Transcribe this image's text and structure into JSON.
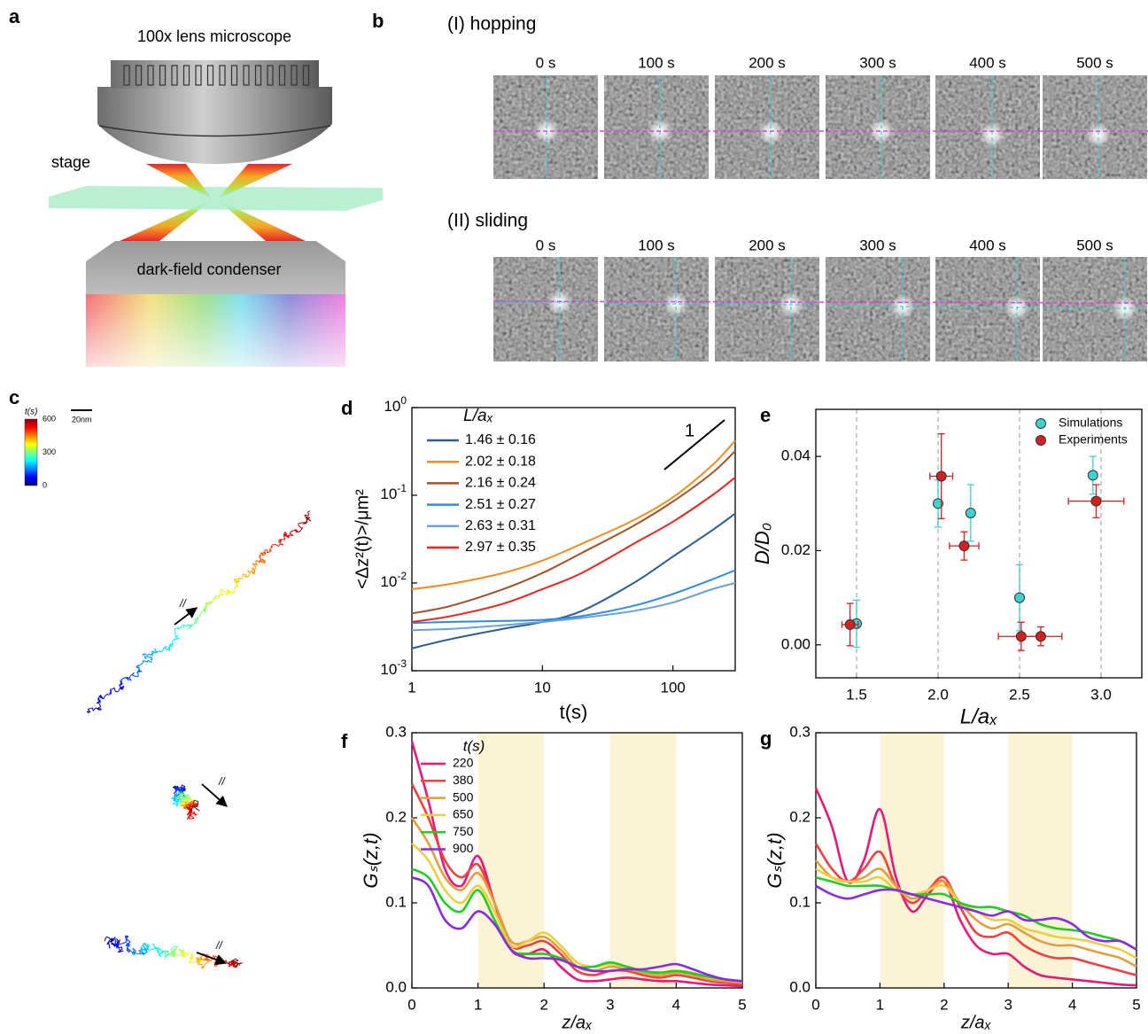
{
  "panel_labels": [
    "a",
    "b",
    "c",
    "d",
    "e",
    "f",
    "g"
  ],
  "schematic": {
    "lens": "100x lens microscope",
    "stage": "stage",
    "condenser": "dark-field condenser"
  },
  "frames": {
    "rows": [
      {
        "title": "(I) hopping",
        "times": [
          "0 s",
          "100 s",
          "200 s",
          "300 s",
          "400 s",
          "500 s"
        ]
      },
      {
        "title": "(II) sliding",
        "times": [
          "0 s",
          "100 s",
          "200 s",
          "300 s",
          "400 s",
          "500 s"
        ]
      }
    ]
  },
  "trajectories": {
    "colorbar": {
      "title": "t(s)",
      "ticks": [
        0,
        300,
        600
      ]
    },
    "scale": "20nm",
    "direction": [
      "//",
      "//",
      "//"
    ]
  },
  "chart_data": [
    {
      "type": "line",
      "log_x": true,
      "log_y": true,
      "xlabel": "t(s)",
      "ylabel": "<Δz²(t)>/μm²",
      "legend_title": "L/aₓ",
      "legend": "upper left",
      "slope_label": "1",
      "x": [
        1,
        2,
        5,
        10,
        20,
        50,
        100,
        200,
        300
      ],
      "xlim": [
        1,
        300
      ],
      "ylim": [
        0.001,
        1
      ],
      "xticks": [
        1,
        10,
        100
      ],
      "yticks": [
        {
          "value": 0.001,
          "label": "10",
          "exponent": "-3"
        },
        {
          "value": 0.01,
          "label": "10",
          "exponent": "-2"
        },
        {
          "value": 0.1,
          "label": "10",
          "exponent": "-1"
        },
        {
          "value": 1,
          "label": "10",
          "exponent": "0"
        }
      ],
      "series": [
        {
          "name": "1.46 ± 0.16",
          "color": "#2b5d8f",
          "values": [
            0.0018,
            0.0023,
            0.003,
            0.0036,
            0.0048,
            0.01,
            0.02,
            0.04,
            0.062
          ]
        },
        {
          "name": "2.02 ± 0.18",
          "color": "#f28c1e",
          "values": [
            0.0085,
            0.0098,
            0.013,
            0.018,
            0.028,
            0.052,
            0.095,
            0.22,
            0.42
          ]
        },
        {
          "name": "2.16 ± 0.24",
          "color": "#a0522d",
          "values": [
            0.0045,
            0.0055,
            0.0085,
            0.013,
            0.022,
            0.045,
            0.085,
            0.18,
            0.32
          ]
        },
        {
          "name": "2.51 ± 0.27",
          "color": "#2e8ae6",
          "values": [
            0.0035,
            0.0036,
            0.0037,
            0.0038,
            0.0042,
            0.0055,
            0.0075,
            0.011,
            0.014
          ]
        },
        {
          "name": "2.63 ± 0.31",
          "color": "#6aa0d4",
          "values": [
            0.0029,
            0.003,
            0.0033,
            0.0036,
            0.004,
            0.0048,
            0.006,
            0.0085,
            0.01
          ]
        },
        {
          "name": "2.97 ± 0.35",
          "color": "#e8251f",
          "values": [
            0.0036,
            0.0042,
            0.0058,
            0.0085,
            0.013,
            0.028,
            0.05,
            0.1,
            0.16
          ]
        }
      ]
    },
    {
      "type": "scatter",
      "xlabel": "L/aₓ",
      "ylabel": "D/D₀",
      "xlim": [
        1.25,
        3.25
      ],
      "ylim": [
        -0.007,
        0.05
      ],
      "xgrid": true,
      "legend": "upper right",
      "xticks": [
        {
          "value": 1.5,
          "label": "1.5"
        },
        {
          "value": 2,
          "label": "2.0"
        },
        {
          "value": 2.5,
          "label": "2.5"
        },
        {
          "value": 3,
          "label": "3.0"
        }
      ],
      "yticks": [
        {
          "value": 0,
          "label": "0.00"
        },
        {
          "value": 0.02,
          "label": "0.02"
        },
        {
          "value": 0.04,
          "label": "0.04"
        }
      ],
      "series": [
        {
          "name": "Simulations",
          "color": "#3fd0d0",
          "x": [
            1.5,
            2.0,
            2.2,
            2.5,
            2.95
          ],
          "values": [
            0.0045,
            0.03,
            0.028,
            0.01,
            0.036
          ],
          "yerr": [
            0.005,
            0.005,
            0.006,
            0.007,
            0.004
          ]
        },
        {
          "name": "Experiments",
          "color": "#d42020",
          "x": [
            1.46,
            2.02,
            2.16,
            2.51,
            2.63,
            2.97
          ],
          "values": [
            0.0043,
            0.0358,
            0.021,
            0.0018,
            0.0018,
            0.0305
          ],
          "yerr": [
            0.0045,
            0.009,
            0.003,
            0.003,
            0.002,
            0.0035
          ],
          "xerr": [
            0.05,
            0.07,
            0.09,
            0.14,
            0.13,
            0.17
          ]
        }
      ]
    },
    {
      "type": "line",
      "xlabel": "z/aₓ",
      "ylabel": "Gₛ(z,t)",
      "legend_title": "t(s)",
      "legend": "upper left",
      "x": [
        0,
        0.25,
        0.5,
        0.75,
        1,
        1.25,
        1.5,
        1.75,
        2,
        2.25,
        2.5,
        2.75,
        3,
        3.25,
        3.5,
        3.75,
        4,
        4.25,
        4.5,
        4.75,
        5
      ],
      "xlim": [
        0,
        5
      ],
      "ylim": [
        0,
        0.3
      ],
      "xticks": [
        0,
        1,
        2,
        3,
        4,
        5
      ],
      "yticks": [
        {
          "value": 0,
          "label": "0.0"
        },
        0.1,
        0.2,
        0.3
      ],
      "bands": [
        [
          1,
          2
        ],
        [
          3,
          4
        ]
      ],
      "band_color": "#fbf3d5",
      "series": [
        {
          "name": "220",
          "color": "#e6197a",
          "values": [
            0.29,
            0.22,
            0.14,
            0.12,
            0.155,
            0.1,
            0.045,
            0.04,
            0.045,
            0.025,
            0.01,
            0.008,
            0.01,
            0.012,
            0.01,
            0.008,
            0.008,
            0.006,
            0.004,
            0.003,
            0.002
          ]
        },
        {
          "name": "380",
          "color": "#f04040",
          "values": [
            0.24,
            0.2,
            0.15,
            0.13,
            0.145,
            0.1,
            0.05,
            0.05,
            0.055,
            0.04,
            0.02,
            0.015,
            0.02,
            0.02,
            0.015,
            0.012,
            0.015,
            0.012,
            0.008,
            0.006,
            0.004
          ]
        },
        {
          "name": "500",
          "color": "#e0a040",
          "values": [
            0.2,
            0.17,
            0.13,
            0.115,
            0.135,
            0.1,
            0.055,
            0.055,
            0.06,
            0.045,
            0.025,
            0.02,
            0.025,
            0.022,
            0.018,
            0.015,
            0.018,
            0.015,
            0.01,
            0.008,
            0.006
          ]
        },
        {
          "name": "650",
          "color": "#e8d040",
          "values": [
            0.17,
            0.15,
            0.115,
            0.1,
            0.12,
            0.09,
            0.05,
            0.055,
            0.065,
            0.05,
            0.03,
            0.025,
            0.028,
            0.025,
            0.02,
            0.018,
            0.02,
            0.018,
            0.012,
            0.01,
            0.008
          ]
        },
        {
          "name": "750",
          "color": "#22cc22",
          "values": [
            0.14,
            0.13,
            0.1,
            0.09,
            0.115,
            0.08,
            0.045,
            0.04,
            0.04,
            0.035,
            0.025,
            0.025,
            0.03,
            0.025,
            0.02,
            0.018,
            0.02,
            0.017,
            0.013,
            0.01,
            0.008
          ]
        },
        {
          "name": "900",
          "color": "#8a2be2",
          "values": [
            0.13,
            0.12,
            0.08,
            0.07,
            0.09,
            0.075,
            0.045,
            0.035,
            0.035,
            0.033,
            0.025,
            0.02,
            0.02,
            0.022,
            0.022,
            0.025,
            0.028,
            0.022,
            0.015,
            0.01,
            0.008
          ]
        }
      ]
    },
    {
      "type": "line",
      "xlabel": "z/aₓ",
      "ylabel": "Gₛ(z,t)",
      "x": [
        0,
        0.25,
        0.5,
        0.75,
        1,
        1.25,
        1.5,
        1.75,
        2,
        2.25,
        2.5,
        2.75,
        3,
        3.25,
        3.5,
        3.75,
        4,
        4.25,
        4.5,
        4.75,
        5
      ],
      "xlim": [
        0,
        5
      ],
      "ylim": [
        0,
        0.3
      ],
      "xticks": [
        0,
        1,
        2,
        3,
        4,
        5
      ],
      "yticks": [
        {
          "value": 0,
          "label": "0.0"
        },
        0.1,
        0.2,
        0.3
      ],
      "bands": [
        [
          1,
          2
        ],
        [
          3,
          4
        ]
      ],
      "band_color": "#fbf3d5",
      "series": [
        {
          "color": "#e6197a",
          "values": [
            0.235,
            0.19,
            0.125,
            0.15,
            0.21,
            0.13,
            0.09,
            0.11,
            0.125,
            0.08,
            0.05,
            0.04,
            0.04,
            0.025,
            0.015,
            0.012,
            0.01,
            0.008,
            0.006,
            0.004,
            0.003
          ]
        },
        {
          "color": "#f04040",
          "values": [
            0.17,
            0.14,
            0.125,
            0.14,
            0.16,
            0.12,
            0.1,
            0.115,
            0.13,
            0.095,
            0.065,
            0.06,
            0.065,
            0.05,
            0.04,
            0.035,
            0.035,
            0.03,
            0.025,
            0.02,
            0.015
          ]
        },
        {
          "color": "#e0a040",
          "values": [
            0.15,
            0.13,
            0.125,
            0.13,
            0.14,
            0.12,
            0.105,
            0.115,
            0.125,
            0.1,
            0.08,
            0.07,
            0.075,
            0.065,
            0.055,
            0.05,
            0.05,
            0.045,
            0.04,
            0.035,
            0.025
          ]
        },
        {
          "color": "#e8d040",
          "values": [
            0.14,
            0.13,
            0.125,
            0.125,
            0.13,
            0.115,
            0.11,
            0.115,
            0.12,
            0.1,
            0.09,
            0.08,
            0.08,
            0.07,
            0.065,
            0.06,
            0.058,
            0.055,
            0.05,
            0.045,
            0.035
          ]
        },
        {
          "color": "#22cc22",
          "values": [
            0.13,
            0.125,
            0.12,
            0.12,
            0.12,
            0.115,
            0.11,
            0.11,
            0.11,
            0.1,
            0.095,
            0.095,
            0.09,
            0.085,
            0.075,
            0.07,
            0.068,
            0.065,
            0.06,
            0.055,
            0.045
          ]
        },
        {
          "color": "#8a2be2",
          "values": [
            0.12,
            0.11,
            0.105,
            0.11,
            0.115,
            0.115,
            0.11,
            0.105,
            0.1,
            0.095,
            0.09,
            0.085,
            0.09,
            0.08,
            0.08,
            0.082,
            0.075,
            0.06,
            0.055,
            0.055,
            0.045
          ]
        }
      ]
    }
  ]
}
